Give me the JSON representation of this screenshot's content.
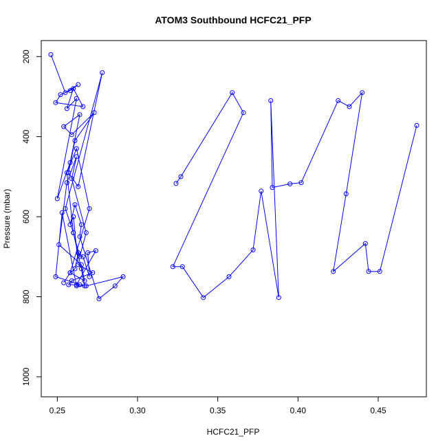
{
  "chart_data": {
    "type": "scatter",
    "title": "ATOM3 Southbound HCFC21_PFP",
    "xlabel": "HCFC21_PFP",
    "ylabel": "Pressure (mbar)",
    "xlim": [
      0.24,
      0.48
    ],
    "ylim": [
      1050,
      160
    ],
    "y_inverted": true,
    "xticks": [
      0.25,
      0.3,
      0.35,
      0.4,
      0.45
    ],
    "xtick_labels": [
      "0.25",
      "0.30",
      "0.35",
      "0.40",
      "0.45"
    ],
    "yticks": [
      200,
      400,
      600,
      800,
      1000
    ],
    "ytick_labels": [
      "200",
      "400",
      "600",
      "800",
      "1000"
    ],
    "grid": false,
    "legend": "none",
    "series": [
      {
        "color": "#0000ff",
        "marker": "open-circle",
        "line": true,
        "x": [
          0.246,
          0.255,
          0.263,
          0.258,
          0.252,
          0.249,
          0.266,
          0.26,
          0.256,
          0.262,
          0.25,
          0.258,
          0.264,
          0.254,
          0.259,
          0.273,
          0.261,
          0.257,
          0.263,
          0.278,
          0.255,
          0.26,
          0.264,
          0.268,
          0.259,
          0.262,
          0.256,
          0.251,
          0.265,
          0.267,
          0.258,
          0.261,
          0.263,
          0.266,
          0.27,
          0.269,
          0.274,
          0.262,
          0.264,
          0.257,
          0.259,
          0.272,
          0.263,
          0.26,
          0.258,
          0.261,
          0.265,
          0.264,
          0.276,
          0.286,
          0.291,
          0.268,
          0.262,
          0.253,
          0.249,
          0.267,
          0.265,
          0.26,
          0.256,
          0.262,
          0.27,
          0.258,
          0.254
        ],
        "y": [
          195,
          290,
          270,
          285,
          295,
          315,
          325,
          280,
          330,
          305,
          555,
          465,
          345,
          375,
          395,
          340,
          410,
          490,
          525,
          240,
          580,
          640,
          700,
          640,
          505,
          450,
          515,
          670,
          720,
          760,
          740,
          730,
          690,
          700,
          750,
          690,
          685,
          770,
          770,
          770,
          760,
          740,
          720,
          600,
          620,
          570,
          620,
          650,
          805,
          773,
          750,
          773,
          773,
          590,
          750,
          773,
          730,
          640,
          490,
          430,
          580,
          740,
          765
        ]
      },
      {
        "color": "#0000ff",
        "marker": "open-circle",
        "line": true,
        "x": [
          0.324,
          0.327,
          0.359,
          0.366,
          0.322,
          0.328,
          0.341,
          0.357,
          0.372,
          0.377,
          0.388,
          0.383,
          0.384,
          0.395,
          0.402,
          0.425,
          0.432,
          0.44,
          0.43,
          0.422,
          0.442,
          0.444,
          0.451,
          0.474
        ],
        "y": [
          517,
          500,
          290,
          340,
          725,
          725,
          802,
          750,
          683,
          536,
          802,
          310,
          527,
          518,
          515,
          310,
          325,
          290,
          543,
          737,
          667,
          737,
          737,
          372
        ]
      }
    ]
  }
}
